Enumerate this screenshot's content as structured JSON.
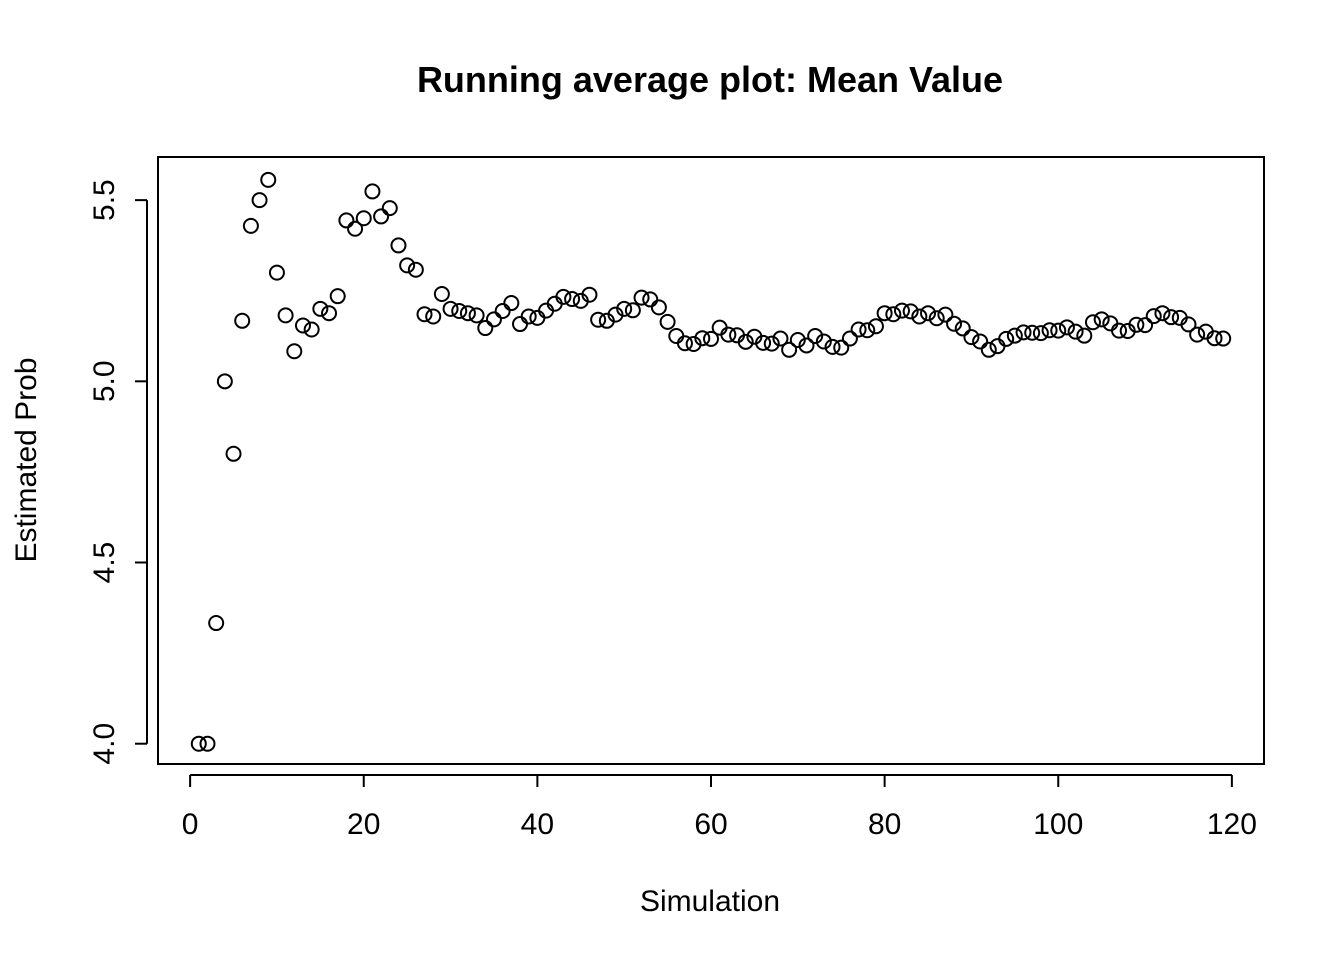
{
  "chart_data": {
    "type": "scatter",
    "title": "Running average plot: Mean Value",
    "xlabel": "Simulation",
    "ylabel": "Estimated Prob",
    "xlim": [
      -3.7,
      123.7
    ],
    "ylim": [
      3.944,
      5.619
    ],
    "x_ticks": [
      0,
      20,
      40,
      60,
      80,
      100,
      120
    ],
    "y_ticks": [
      4.0,
      4.5,
      5.0,
      5.5
    ],
    "x_tick_labels": [
      "0",
      "20",
      "40",
      "60",
      "80",
      "100",
      "120"
    ],
    "y_tick_labels": [
      "4.0",
      "4.5",
      "5.0",
      "5.5"
    ],
    "grid": false,
    "legend": "none",
    "marker": "open-circle",
    "x": [
      1,
      2,
      3,
      4,
      5,
      6,
      7,
      8,
      9,
      10,
      11,
      12,
      13,
      14,
      15,
      16,
      17,
      18,
      19,
      20,
      21,
      22,
      23,
      24,
      25,
      26,
      27,
      28,
      29,
      30,
      31,
      32,
      33,
      34,
      35,
      36,
      37,
      38,
      39,
      40,
      41,
      42,
      43,
      44,
      45,
      46,
      47,
      48,
      49,
      50,
      51,
      52,
      53,
      54,
      55,
      56,
      57,
      58,
      59,
      60,
      61,
      62,
      63,
      64,
      65,
      66,
      67,
      68,
      69,
      70,
      71,
      72,
      73,
      74,
      75,
      76,
      77,
      78,
      79,
      80,
      81,
      82,
      83,
      84,
      85,
      86,
      87,
      88,
      89,
      90,
      91,
      92,
      93,
      94,
      95,
      96,
      97,
      98,
      99,
      100,
      101,
      102,
      103,
      104,
      105,
      106,
      107,
      108,
      109,
      110,
      111,
      112,
      113,
      114,
      115,
      116,
      117,
      118,
      119
    ],
    "y": [
      4.0,
      4.0,
      4.333,
      5.0,
      4.8,
      5.167,
      5.429,
      5.5,
      5.556,
      5.3,
      5.182,
      5.083,
      5.154,
      5.143,
      5.2,
      5.188,
      5.235,
      5.444,
      5.421,
      5.45,
      5.524,
      5.455,
      5.478,
      5.375,
      5.32,
      5.308,
      5.185,
      5.179,
      5.241,
      5.2,
      5.194,
      5.188,
      5.182,
      5.147,
      5.171,
      5.194,
      5.216,
      5.158,
      5.179,
      5.175,
      5.195,
      5.214,
      5.233,
      5.227,
      5.222,
      5.239,
      5.17,
      5.167,
      5.184,
      5.2,
      5.196,
      5.231,
      5.226,
      5.204,
      5.164,
      5.125,
      5.105,
      5.103,
      5.119,
      5.117,
      5.148,
      5.129,
      5.127,
      5.109,
      5.123,
      5.106,
      5.104,
      5.118,
      5.087,
      5.114,
      5.099,
      5.125,
      5.11,
      5.095,
      5.093,
      5.118,
      5.143,
      5.141,
      5.152,
      5.188,
      5.185,
      5.195,
      5.193,
      5.179,
      5.188,
      5.174,
      5.184,
      5.159,
      5.146,
      5.122,
      5.11,
      5.087,
      5.097,
      5.117,
      5.126,
      5.135,
      5.134,
      5.133,
      5.141,
      5.14,
      5.149,
      5.137,
      5.126,
      5.163,
      5.171,
      5.16,
      5.14,
      5.139,
      5.156,
      5.155,
      5.18,
      5.188,
      5.177,
      5.175,
      5.157,
      5.129,
      5.137,
      5.119,
      5.118
    ]
  }
}
